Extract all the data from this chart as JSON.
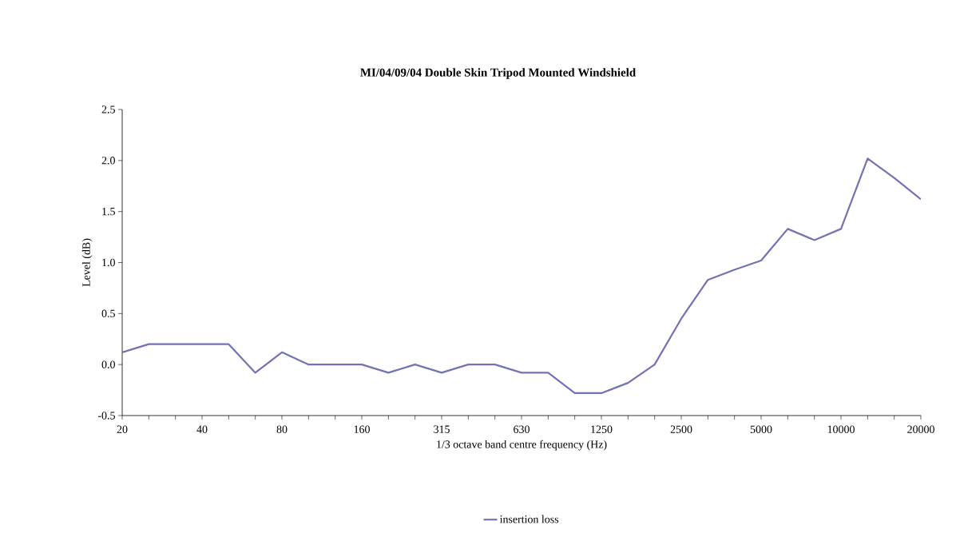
{
  "chart_data": {
    "type": "line",
    "title": "MI/04/09/04 Double Skin Tripod Mounted Windshield",
    "xlabel": "1/3 octave band centre frequency (Hz)",
    "ylabel": "Level (dB)",
    "categories": [
      "20",
      null,
      null,
      "40",
      null,
      null,
      "80",
      null,
      null,
      "160",
      null,
      null,
      "315",
      null,
      null,
      "630",
      null,
      null,
      "1250",
      null,
      null,
      "2500",
      null,
      null,
      "5000",
      null,
      null,
      "10000",
      null,
      null,
      "20000"
    ],
    "series": [
      {
        "name": "insertion loss",
        "color": "#7272b4",
        "values": [
          0.12,
          0.2,
          0.2,
          0.2,
          0.2,
          -0.08,
          0.12,
          0.0,
          0.0,
          0.0,
          -0.08,
          0.0,
          -0.08,
          0.0,
          0.0,
          -0.08,
          -0.08,
          -0.28,
          -0.28,
          -0.18,
          0.0,
          0.45,
          0.83,
          0.93,
          1.02,
          1.33,
          1.22,
          1.33,
          2.02,
          1.83,
          1.62
        ]
      }
    ],
    "ylim": [
      -0.5,
      2.5
    ],
    "yticks": [
      -0.5,
      {
        "value": 0,
        "label": "0.0"
      },
      0.5,
      {
        "value": 1,
        "label": "1.0"
      },
      1.5,
      {
        "value": 2,
        "label": "2.0"
      },
      2.5
    ],
    "legend": "bottom",
    "marker": "none",
    "line_style": "solid",
    "grid": false
  }
}
